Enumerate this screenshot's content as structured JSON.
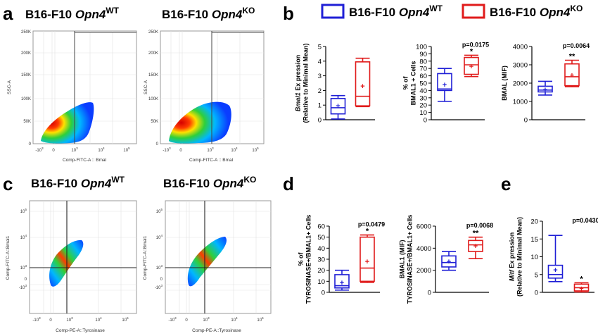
{
  "panels": {
    "a": {
      "letter": "a",
      "plots": [
        {
          "title_prefix": "B16-F10 ",
          "title_gene": "Opn4",
          "title_sup": "WT",
          "xlabel": "Comp-FITC-A :: Bmal",
          "ylabel": "SSC-A",
          "y_ticks": [
            "0",
            "50K",
            "100K",
            "150K",
            "200K",
            "250K"
          ],
          "x_ticks": [
            {
              "base": "-10",
              "exp": "3"
            },
            {
              "base": "0",
              "exp": ""
            },
            {
              "base": "10",
              "exp": "3"
            },
            {
              "base": "10",
              "exp": "4"
            },
            {
              "base": "10",
              "exp": "5"
            }
          ]
        },
        {
          "title_prefix": "B16-F10 ",
          "title_gene": "Opn4",
          "title_sup": "KO",
          "xlabel": "Comp-FITC-A :: Bmal",
          "ylabel": "SSC-A",
          "y_ticks": [
            "0",
            "50K",
            "100K",
            "150K",
            "200K",
            "250K"
          ],
          "x_ticks": [
            {
              "base": "-10",
              "exp": "3"
            },
            {
              "base": "0",
              "exp": ""
            },
            {
              "base": "10",
              "exp": "3"
            },
            {
              "base": "10",
              "exp": "4"
            },
            {
              "base": "10",
              "exp": "5"
            }
          ]
        }
      ]
    },
    "b": {
      "letter": "b",
      "legend": [
        {
          "prefix": "B16-F10 ",
          "gene": "Opn4",
          "sup": "WT",
          "color": "#1f1fd6"
        },
        {
          "prefix": "B16-F10 ",
          "gene": "Opn4",
          "sup": "KO",
          "color": "#e01b1b"
        }
      ]
    },
    "c": {
      "letter": "c",
      "plots": [
        {
          "title_prefix": "B16-F10 ",
          "title_gene": "Opn4",
          "title_sup": "WT",
          "xlabel": "Comp-PE-A::Tyrosinase",
          "ylabel": "Comp-FITC-A::Bmal1",
          "y_ticks": [
            {
              "base": "-10",
              "exp": "3"
            },
            {
              "base": "0",
              "exp": ""
            },
            {
              "base": "10",
              "exp": "3"
            },
            {
              "base": "10",
              "exp": "4"
            },
            {
              "base": "10",
              "exp": "5"
            }
          ],
          "x_ticks": [
            {
              "base": "-10",
              "exp": "3"
            },
            {
              "base": "0",
              "exp": ""
            },
            {
              "base": "10",
              "exp": "3"
            },
            {
              "base": "10",
              "exp": "4"
            },
            {
              "base": "10",
              "exp": "5"
            }
          ]
        },
        {
          "title_prefix": "B16-F10 ",
          "title_gene": "Opn4",
          "title_sup": "KO",
          "xlabel": "Comp-PE-A::Tyrosinase",
          "ylabel": "Comp-FITC-A::Bmal1",
          "y_ticks": [
            {
              "base": "-10",
              "exp": "3"
            },
            {
              "base": "0",
              "exp": ""
            },
            {
              "base": "10",
              "exp": "3"
            },
            {
              "base": "10",
              "exp": "4"
            },
            {
              "base": "10",
              "exp": "5"
            }
          ],
          "x_ticks": [
            {
              "base": "-10",
              "exp": "3"
            },
            {
              "base": "0",
              "exp": ""
            },
            {
              "base": "10",
              "exp": "3"
            },
            {
              "base": "10",
              "exp": "4"
            },
            {
              "base": "10",
              "exp": "5"
            }
          ]
        }
      ]
    },
    "d": {
      "letter": "d"
    },
    "e": {
      "letter": "e"
    }
  },
  "colors": {
    "wt": "#1f1fd6",
    "ko": "#e01b1b"
  },
  "chart_data": [
    {
      "id": "b1",
      "type": "box",
      "ylabel_lines": [
        {
          "italic": "Bmal1",
          "text": " Ex pression"
        },
        {
          "italic": "",
          "text": "(Relative to Minimal Mean)"
        }
      ],
      "ylim": [
        0,
        5
      ],
      "yticks": [
        0,
        1,
        2,
        3,
        4,
        5
      ],
      "pvalue": "",
      "stars": "",
      "groups": [
        {
          "name": "WT",
          "min": 0.05,
          "q1": 0.4,
          "median": 0.82,
          "q3": 1.45,
          "max": 1.65,
          "mean": 0.95
        },
        {
          "name": "KO",
          "min": 0.9,
          "q1": 0.95,
          "median": 1.6,
          "q3": 3.95,
          "max": 4.2,
          "mean": 2.3
        }
      ]
    },
    {
      "id": "b2",
      "type": "box",
      "ylabel_lines": [
        {
          "italic": "",
          "text": "% of"
        },
        {
          "italic": "",
          "text": "BMAL1 + Cells"
        }
      ],
      "ylim": [
        0,
        100
      ],
      "yticks": [
        0,
        10,
        20,
        30,
        40,
        50,
        60,
        70,
        80,
        90,
        100
      ],
      "pvalue": "p=0.0175",
      "stars": "*",
      "groups": [
        {
          "name": "WT",
          "min": 25,
          "q1": 40,
          "median": 42,
          "q3": 63,
          "max": 70,
          "mean": 48
        },
        {
          "name": "KO",
          "min": 59,
          "q1": 62,
          "median": 75,
          "q3": 85,
          "max": 88,
          "mean": 73
        }
      ]
    },
    {
      "id": "b3",
      "type": "box",
      "ylabel_lines": [
        {
          "italic": "",
          "text": "BMAL  (MIF)"
        }
      ],
      "ylim": [
        0,
        4000
      ],
      "yticks": [
        0,
        1000,
        2000,
        3000,
        4000
      ],
      "pvalue": "p=0.0064",
      "stars": "**",
      "groups": [
        {
          "name": "WT",
          "min": 1350,
          "q1": 1520,
          "median": 1620,
          "q3": 1830,
          "max": 2100,
          "mean": 1650
        },
        {
          "name": "KO",
          "min": 1800,
          "q1": 1860,
          "median": 2350,
          "q3": 3050,
          "max": 3250,
          "mean": 2450
        }
      ]
    },
    {
      "id": "d1",
      "type": "box",
      "ylabel_lines": [
        {
          "italic": "",
          "text": "% of"
        },
        {
          "italic": "",
          "text": "TYROSINASE+/BMAL1+ Cells"
        }
      ],
      "ylim": [
        0,
        60
      ],
      "yticks": [
        0,
        10,
        20,
        30,
        40,
        50,
        60
      ],
      "pvalue": "p=0.0479",
      "stars": "*",
      "groups": [
        {
          "name": "WT",
          "min": 2,
          "q1": 4,
          "median": 6,
          "q3": 16,
          "max": 20,
          "mean": 9
        },
        {
          "name": "KO",
          "min": 9,
          "q1": 10,
          "median": 22,
          "q3": 50,
          "max": 52,
          "mean": 28
        }
      ]
    },
    {
      "id": "d2",
      "type": "box",
      "ylabel_lines": [
        {
          "italic": "",
          "text": "BMAL1 (MIF)"
        },
        {
          "italic": "",
          "text": "TYROSINASE+/BMAL1+ Cells"
        }
      ],
      "ylim": [
        0,
        6000
      ],
      "yticks": [
        0,
        2000,
        4000,
        6000
      ],
      "pvalue": "p=0.0068",
      "stars": "**",
      "groups": [
        {
          "name": "WT",
          "min": 2000,
          "q1": 2300,
          "median": 2700,
          "q3": 3300,
          "max": 3700,
          "mean": 2800
        },
        {
          "name": "KO",
          "min": 3050,
          "q1": 3700,
          "median": 4300,
          "q3": 4700,
          "max": 5000,
          "mean": 4200
        }
      ]
    },
    {
      "id": "e1",
      "type": "box",
      "ylabel_lines": [
        {
          "italic": "Mitf",
          "text": " Ex pression"
        },
        {
          "italic": "",
          "text": "(Relative to Minimal Mean)"
        }
      ],
      "ylim": [
        0,
        20
      ],
      "yticks": [
        0,
        5,
        10,
        15,
        20
      ],
      "pvalue": "p=0.0430",
      "stars": "*",
      "groups": [
        {
          "name": "WT",
          "min": 3,
          "q1": 4,
          "median": 5,
          "q3": 7.6,
          "max": 16,
          "mean": 6.3
        },
        {
          "name": "KO",
          "min": 0.1,
          "q1": 0.4,
          "median": 1.3,
          "q3": 2.3,
          "max": 2.7,
          "mean": 1.1
        }
      ]
    }
  ]
}
